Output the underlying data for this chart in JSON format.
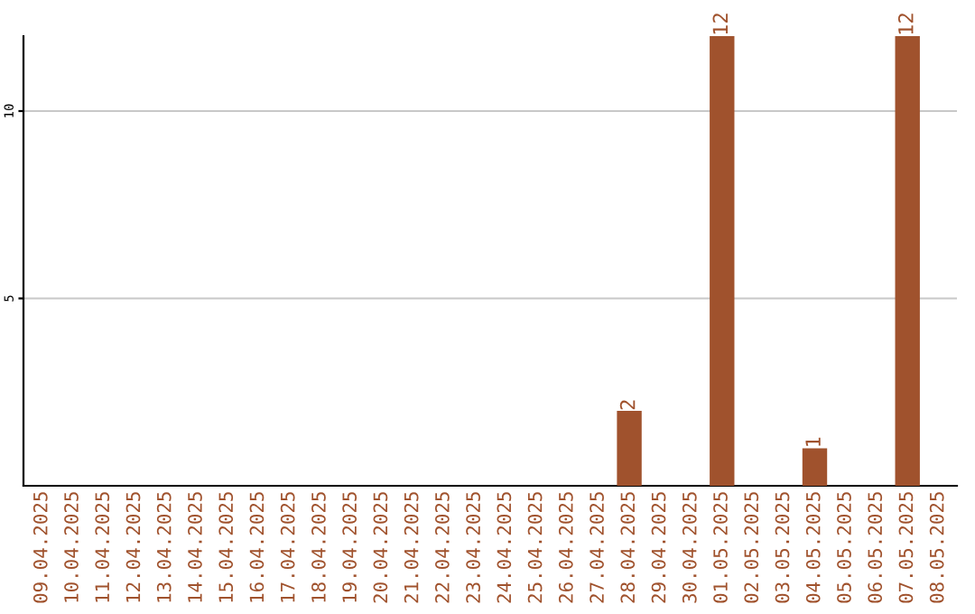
{
  "chart_data": {
    "type": "bar",
    "categories": [
      "09.04.2025",
      "10.04.2025",
      "11.04.2025",
      "12.04.2025",
      "13.04.2025",
      "14.04.2025",
      "15.04.2025",
      "16.04.2025",
      "17.04.2025",
      "18.04.2025",
      "19.04.2025",
      "20.04.2025",
      "21.04.2025",
      "22.04.2025",
      "23.04.2025",
      "24.04.2025",
      "25.04.2025",
      "26.04.2025",
      "27.04.2025",
      "28.04.2025",
      "29.04.2025",
      "30.04.2025",
      "01.05.2025",
      "02.05.2025",
      "03.05.2025",
      "04.05.2025",
      "05.05.2025",
      "06.05.2025",
      "07.05.2025",
      "08.05.2025"
    ],
    "values": [
      0,
      0,
      0,
      0,
      0,
      0,
      0,
      0,
      0,
      0,
      0,
      0,
      0,
      0,
      0,
      0,
      0,
      0,
      0,
      2,
      0,
      0,
      12,
      0,
      0,
      1,
      0,
      0,
      12,
      0
    ],
    "value_labels": [
      null,
      null,
      null,
      null,
      null,
      null,
      null,
      null,
      null,
      null,
      null,
      null,
      null,
      null,
      null,
      null,
      null,
      null,
      null,
      "2",
      null,
      null,
      "12",
      null,
      null,
      "1",
      null,
      null,
      "12",
      null
    ],
    "color": "#a0522d",
    "ylim": [
      0,
      12
    ],
    "yticks": [
      5,
      10
    ],
    "grid": "y"
  }
}
